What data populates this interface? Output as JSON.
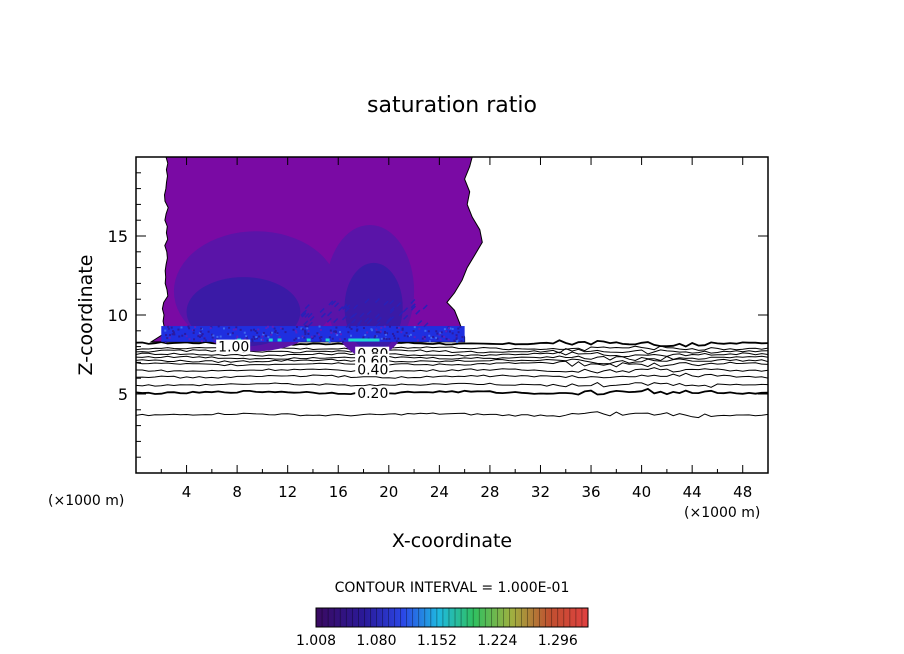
{
  "chart_data": {
    "type": "contour",
    "title": "saturation ratio",
    "xlabel": "X-coordinate",
    "ylabel": "Z-coordinate",
    "x_unit_left": "(×1000 m)",
    "x_unit_right": "(×1000 m)",
    "xlim": [
      0,
      50
    ],
    "ylim": [
      0,
      20
    ],
    "x_ticks": [
      "4",
      "8",
      "12",
      "16",
      "20",
      "24",
      "28",
      "32",
      "36",
      "40",
      "44",
      "48"
    ],
    "y_ticks": [
      "5",
      "10",
      "15"
    ],
    "contour_interval_text": "CONTOUR INTERVAL = 1.000E-01",
    "contour_line_labels": [
      "1.00",
      "0.80",
      "0.60",
      "0.40",
      "0.20"
    ],
    "contour_line_levels": [
      {
        "label": "1.00",
        "z": 8.2
      },
      {
        "label": "0.80",
        "z": 7.5
      },
      {
        "label": "0.60",
        "z": 7.1
      },
      {
        "label": "0.40",
        "z": 6.5
      },
      {
        "label": "0.20",
        "z": 5.1
      }
    ],
    "filled_region": {
      "description_levels": "supersaturated region filled with colormap",
      "x_range": [
        2,
        26
      ],
      "z_range": [
        8.2,
        20
      ]
    },
    "colorbar": {
      "tick_labels": [
        "1.008",
        "1.080",
        "1.152",
        "1.224",
        "1.296"
      ],
      "range": [
        1.008,
        1.332
      ]
    }
  },
  "colors": {
    "fill_main": "#7a0aa4",
    "fill_mid": "#5a14a8",
    "fill_inner": "#3a1aa6",
    "band_blue": "#1f2fe0",
    "band_cyan": "#20d8d0",
    "axis": "#000000"
  }
}
